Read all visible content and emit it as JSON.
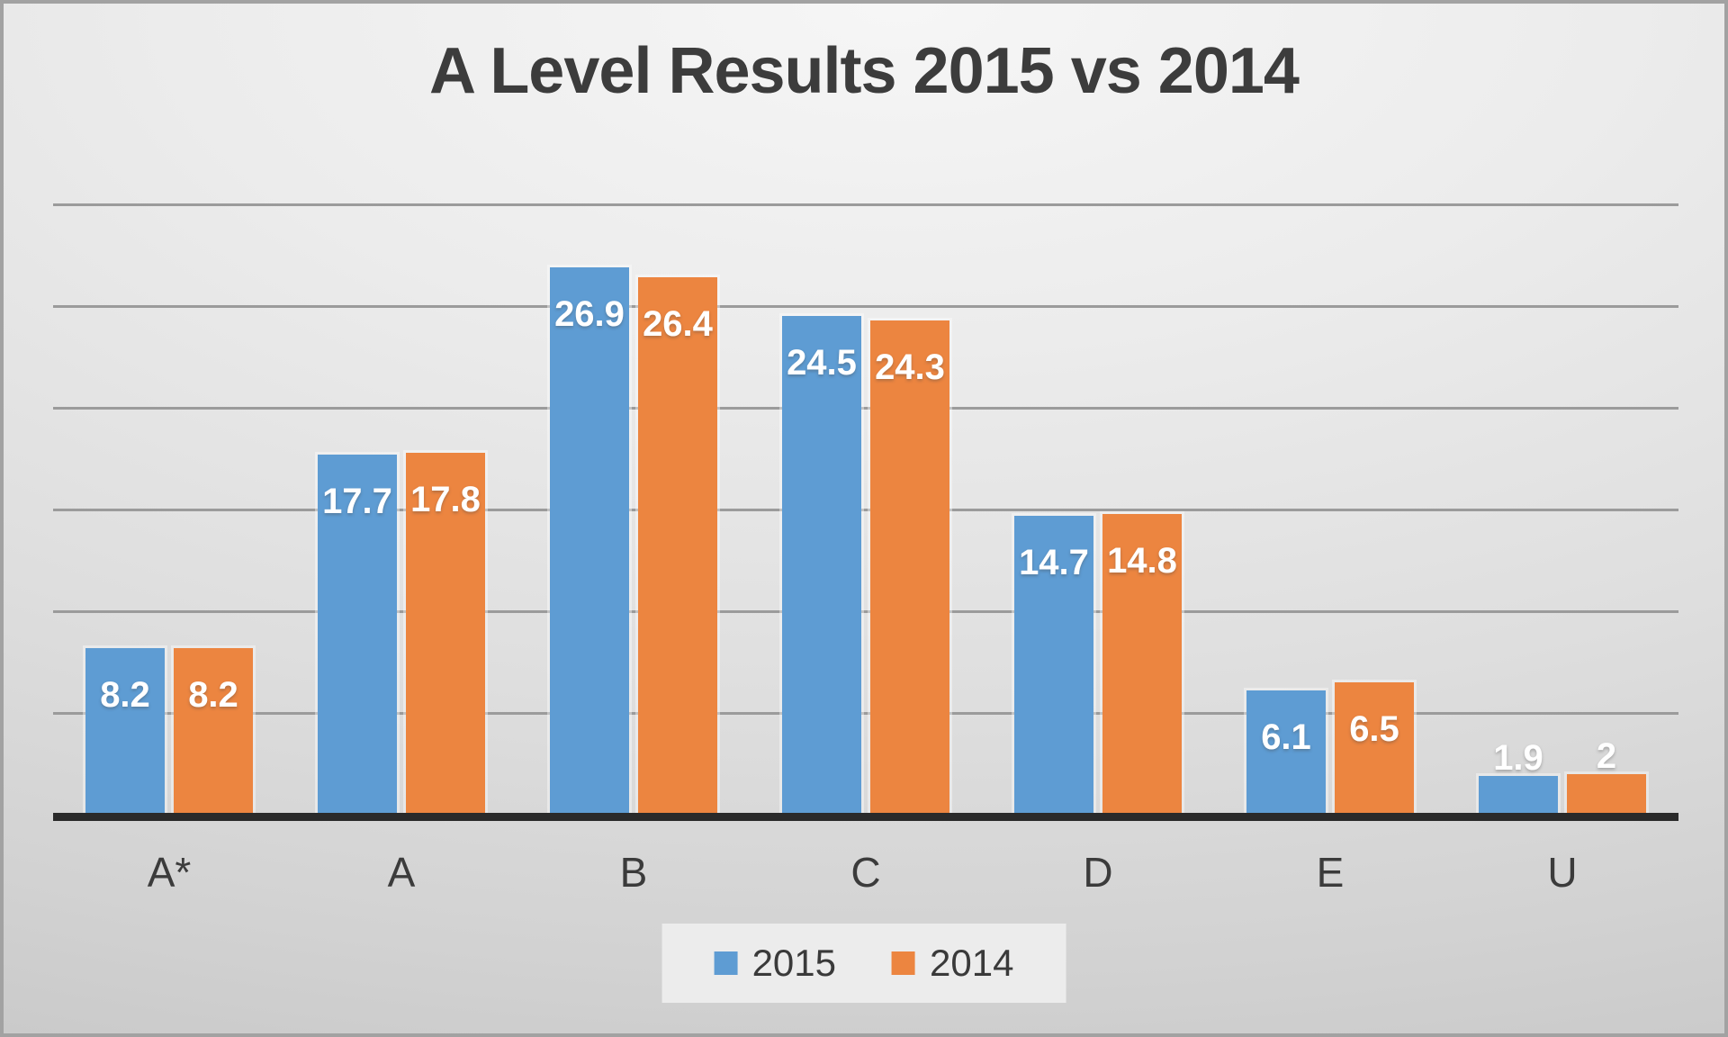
{
  "title": "A Level Results 2015 vs 2014",
  "chart_data": {
    "type": "bar",
    "title": "A Level Results 2015 vs 2014",
    "categories": [
      "A*",
      "A",
      "B",
      "C",
      "D",
      "E",
      "U"
    ],
    "series": [
      {
        "name": "2015",
        "color": "#5E9CD3",
        "values": [
          8.2,
          17.7,
          26.9,
          24.5,
          14.7,
          6.1,
          1.9
        ]
      },
      {
        "name": "2014",
        "color": "#EC8540",
        "values": [
          8.2,
          17.8,
          26.4,
          24.3,
          14.8,
          6.5,
          2
        ]
      }
    ],
    "xlabel": "",
    "ylabel": "",
    "ylim": [
      0,
      31
    ],
    "gridline_step": 5,
    "grid": true,
    "y_axis_tick_labels_visible": false,
    "data_labels": "white bold, inside end of bars; above bar when bar too short",
    "legend_position": "bottom"
  },
  "colors": {
    "series_2015": "#5E9CD3",
    "series_2014": "#EC8540",
    "gridline": "#9B9B9B",
    "axis_line": "#2A2A2A",
    "text": "#3B3B3B",
    "legend_background": "#ECECEC"
  }
}
